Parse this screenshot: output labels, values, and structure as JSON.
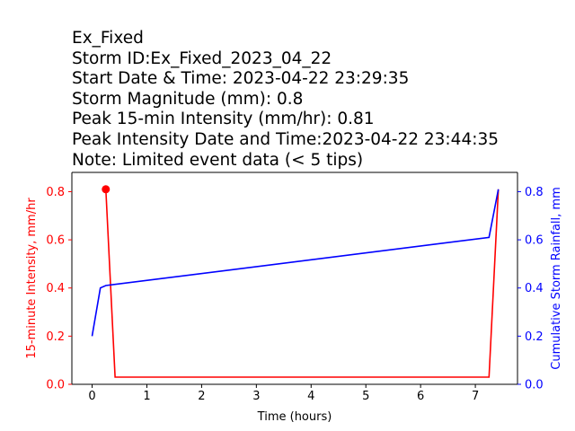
{
  "title_lines": [
    "Ex_Fixed",
    "Storm ID:Ex_Fixed_2023_04_22",
    "Start Date & Time: 2023-04-22 23:29:35",
    "Storm Magnitude (mm): 0.8",
    "Peak 15-min Intensity (mm/hr): 0.81",
    "Peak Intensity Date and Time:2023-04-22 23:44:35",
    "Note: Limited event data (< 5 tips)"
  ],
  "colors": {
    "intensity": "#ff0000",
    "cumulative": "#0000ff",
    "axis": "#000000"
  },
  "chart_data": {
    "type": "line",
    "xlabel": "Time (hours)",
    "ylabel_left": "15-minute Intensity, mm/hr",
    "ylabel_right": "Cumulative Storm Rainfall, mm",
    "xlim": [
      -0.37,
      7.77
    ],
    "ylim_left": [
      0.0,
      0.88
    ],
    "ylim_right": [
      0.0,
      0.88
    ],
    "x_ticks": [
      0,
      1,
      2,
      3,
      4,
      5,
      6,
      7
    ],
    "y_ticks_left": [
      0.0,
      0.2,
      0.4,
      0.6,
      0.8
    ],
    "y_ticks_right": [
      0.0,
      0.2,
      0.4,
      0.6,
      0.8
    ],
    "grid": false,
    "series": [
      {
        "axis": "left",
        "x": [
          0.25,
          0.42,
          7.25,
          7.42
        ],
        "y": [
          0.81,
          0.03,
          0.03,
          0.81
        ],
        "peak_marker": {
          "x": 0.25,
          "y": 0.81
        }
      },
      {
        "axis": "right",
        "x": [
          0.0,
          0.15,
          0.25,
          7.25,
          7.42
        ],
        "y": [
          0.2,
          0.4,
          0.41,
          0.61,
          0.81
        ]
      }
    ]
  }
}
